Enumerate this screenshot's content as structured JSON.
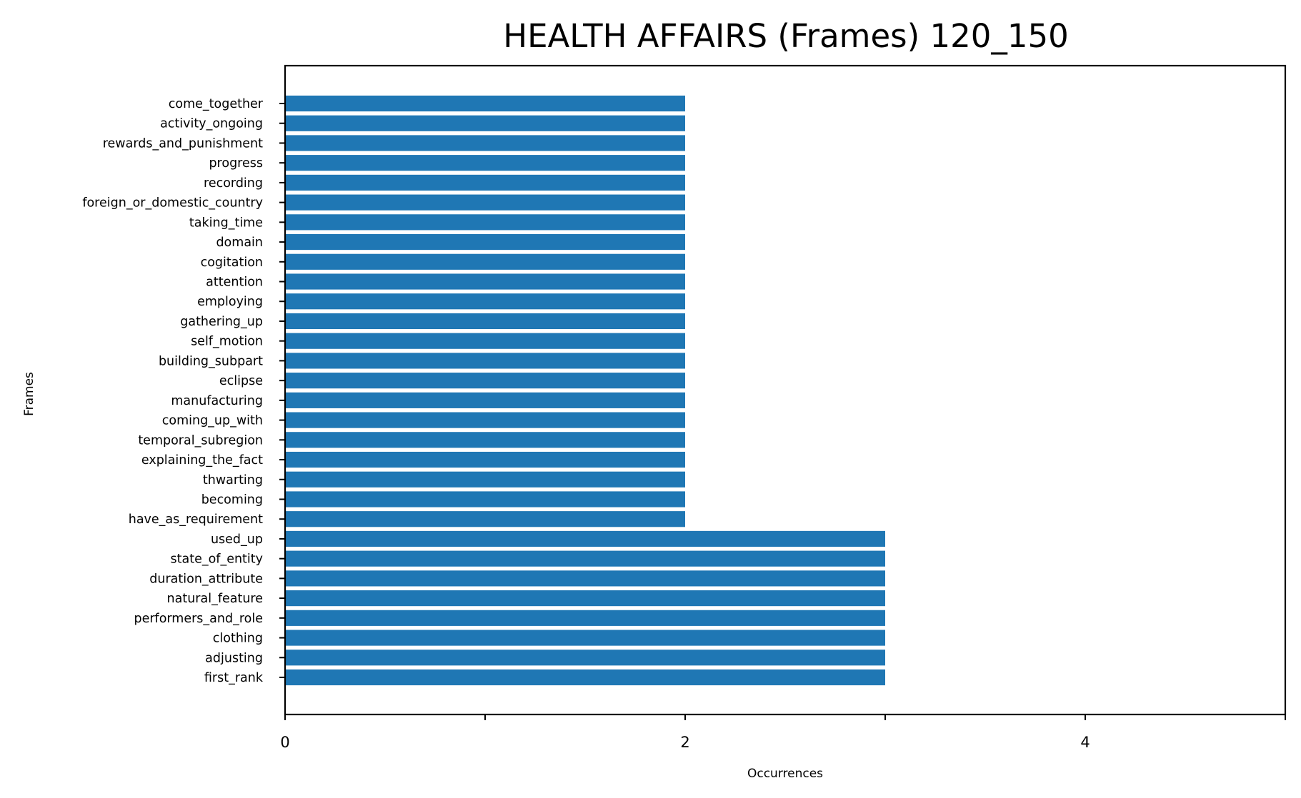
{
  "chart_data": {
    "type": "bar",
    "orientation": "horizontal",
    "title": "HEALTH AFFAIRS (Frames) 120_150",
    "xlabel": "Occurrences",
    "ylabel": "Frames",
    "xlim": [
      0,
      5
    ],
    "xticks": [
      0,
      1,
      2,
      3,
      4,
      5
    ],
    "xtick_labels": [
      "0",
      "",
      "2",
      "",
      "4",
      ""
    ],
    "grid": false,
    "bar_color": "#1f77b4",
    "categories": [
      "come_together",
      "activity_ongoing",
      "rewards_and_punishment",
      "progress",
      "recording",
      "foreign_or_domestic_country",
      "taking_time",
      "domain",
      "cogitation",
      "attention",
      "employing",
      "gathering_up",
      "self_motion",
      "building_subpart",
      "eclipse",
      "manufacturing",
      "coming_up_with",
      "temporal_subregion",
      "explaining_the_fact",
      "thwarting",
      "becoming",
      "have_as_requirement",
      "used_up",
      "state_of_entity",
      "duration_attribute",
      "natural_feature",
      "performers_and_role",
      "clothing",
      "adjusting",
      "first_rank"
    ],
    "values": [
      2,
      2,
      2,
      2,
      2,
      2,
      2,
      2,
      2,
      2,
      2,
      2,
      2,
      2,
      2,
      2,
      2,
      2,
      2,
      2,
      2,
      2,
      3,
      3,
      3,
      3,
      3,
      3,
      3,
      3
    ]
  }
}
